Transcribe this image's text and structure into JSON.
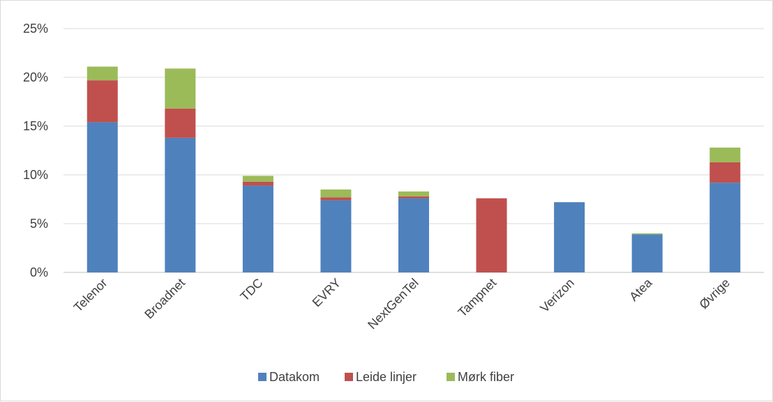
{
  "chart_data": {
    "type": "bar",
    "stacked": true,
    "title": "",
    "xlabel": "",
    "ylabel": "",
    "categories": [
      "Telenor",
      "Broadnet",
      "TDC",
      "EVRY",
      "NextGenTel",
      "Tampnet",
      "Verizon",
      "Atea",
      "Øvrige"
    ],
    "series": [
      {
        "name": "Datakom",
        "color": "#4f81bd",
        "values": [
          15.4,
          13.8,
          8.9,
          7.4,
          7.6,
          0.0,
          7.2,
          3.9,
          9.2
        ]
      },
      {
        "name": "Leide linjer",
        "color": "#c0504d",
        "values": [
          4.3,
          3.0,
          0.4,
          0.3,
          0.2,
          7.6,
          0.0,
          0.0,
          2.1
        ]
      },
      {
        "name": "Mørk fiber",
        "color": "#9bbb59",
        "values": [
          1.4,
          4.1,
          0.6,
          0.8,
          0.5,
          0.0,
          0.0,
          0.1,
          1.5
        ]
      }
    ],
    "ylim": [
      0,
      25
    ],
    "yticks": [
      0,
      5,
      10,
      15,
      20,
      25
    ],
    "ytick_labels": [
      "0%",
      "5%",
      "10%",
      "15%",
      "20%",
      "25%"
    ],
    "grid": true,
    "legend_position": "bottom"
  }
}
